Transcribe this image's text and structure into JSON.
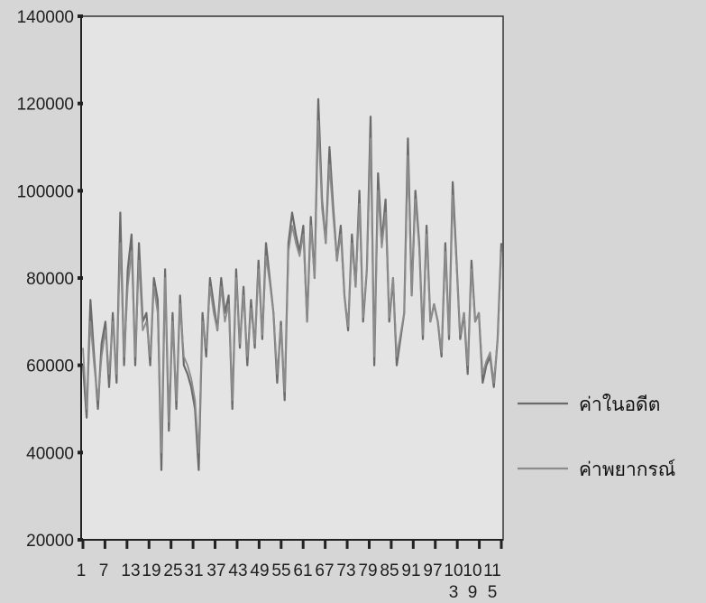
{
  "chart_data": {
    "type": "line",
    "title": "",
    "xlabel": "",
    "ylabel": "",
    "ylim": [
      20000,
      140000
    ],
    "y_ticks": [
      "20000",
      "40000",
      "60000",
      "80000",
      "100000",
      "120000",
      "140000"
    ],
    "x_tick_labels": [
      {
        "text": "1",
        "row": 1
      },
      {
        "text": "7",
        "row": 1
      },
      {
        "text": "13",
        "row": 1
      },
      {
        "text": "19",
        "row": 1
      },
      {
        "text": "25",
        "row": 1
      },
      {
        "text": "31",
        "row": 1
      },
      {
        "text": "37",
        "row": 1
      },
      {
        "text": "43",
        "row": 1
      },
      {
        "text": "49",
        "row": 1
      },
      {
        "text": "55",
        "row": 1
      },
      {
        "text": "61",
        "row": 1
      },
      {
        "text": "67",
        "row": 1
      },
      {
        "text": "73",
        "row": 1
      },
      {
        "text": "79",
        "row": 1
      },
      {
        "text": "85",
        "row": 1
      },
      {
        "text": "91",
        "row": 1
      },
      {
        "text": "97",
        "row": 1
      },
      {
        "text": "10",
        "row": 1
      },
      {
        "text": "10",
        "row": 1
      },
      {
        "text": "11",
        "row": 1
      },
      {
        "text": "3",
        "row": 2
      },
      {
        "text": "9",
        "row": 2
      },
      {
        "text": "5",
        "row": 2
      }
    ],
    "x_tick_count": 20,
    "legend_position": "right",
    "series": [
      {
        "name": "ค่าในอดีต",
        "color": "#6b6b6b",
        "values": [
          60000,
          48000,
          75000,
          62000,
          50000,
          65000,
          70000,
          55000,
          72000,
          56000,
          95000,
          60000,
          82000,
          90000,
          60000,
          88000,
          70000,
          72000,
          60000,
          80000,
          75000,
          36000,
          82000,
          45000,
          72000,
          50000,
          76000,
          60000,
          58000,
          55000,
          50000,
          36000,
          72000,
          62000,
          80000,
          74000,
          68000,
          80000,
          72000,
          76000,
          50000,
          82000,
          64000,
          78000,
          60000,
          75000,
          64000,
          84000,
          66000,
          88000,
          80000,
          72000,
          56000,
          70000,
          52000,
          88000,
          95000,
          90000,
          86000,
          92000,
          70000,
          94000,
          80000,
          121000,
          98000,
          88000,
          110000,
          96000,
          84000,
          92000,
          76000,
          68000,
          90000,
          78000,
          100000,
          70000,
          82000,
          117000,
          60000,
          104000,
          88000,
          98000,
          70000,
          80000,
          60000,
          66000,
          72000,
          112000,
          76000,
          100000,
          88000,
          66000,
          92000,
          70000,
          74000,
          70000,
          62000,
          88000,
          66000,
          102000,
          84000,
          66000,
          72000,
          58000,
          84000,
          70000,
          72000,
          56000,
          60000,
          62000,
          55000,
          66000,
          88000
        ]
      },
      {
        "name": "ค่าพยากรณ์",
        "color": "#8c8c8c",
        "values": [
          64000,
          50000,
          70000,
          60000,
          52000,
          62000,
          68000,
          58000,
          70000,
          58000,
          88000,
          62000,
          78000,
          86000,
          62000,
          84000,
          68000,
          70000,
          62000,
          78000,
          72000,
          40000,
          80000,
          47000,
          70000,
          52000,
          74000,
          62000,
          60000,
          57000,
          52000,
          40000,
          70000,
          64000,
          78000,
          72000,
          68000,
          78000,
          70000,
          74000,
          52000,
          80000,
          65000,
          76000,
          62000,
          73000,
          65000,
          82000,
          67000,
          85000,
          79000,
          72000,
          58000,
          69000,
          54000,
          86000,
          92000,
          88000,
          85000,
          90000,
          70000,
          92000,
          80000,
          116000,
          96000,
          88000,
          106000,
          94000,
          84000,
          90000,
          76000,
          69000,
          88000,
          78000,
          97000,
          71000,
          82000,
          112000,
          62000,
          100000,
          87000,
          95000,
          71000,
          80000,
          62000,
          67000,
          72000,
          108000,
          76000,
          98000,
          87000,
          67000,
          90000,
          70000,
          74000,
          70000,
          63000,
          86000,
          67000,
          99000,
          83000,
          67000,
          72000,
          60000,
          82000,
          70000,
          72000,
          58000,
          61000,
          63000,
          56000,
          66000,
          86000
        ]
      }
    ]
  }
}
